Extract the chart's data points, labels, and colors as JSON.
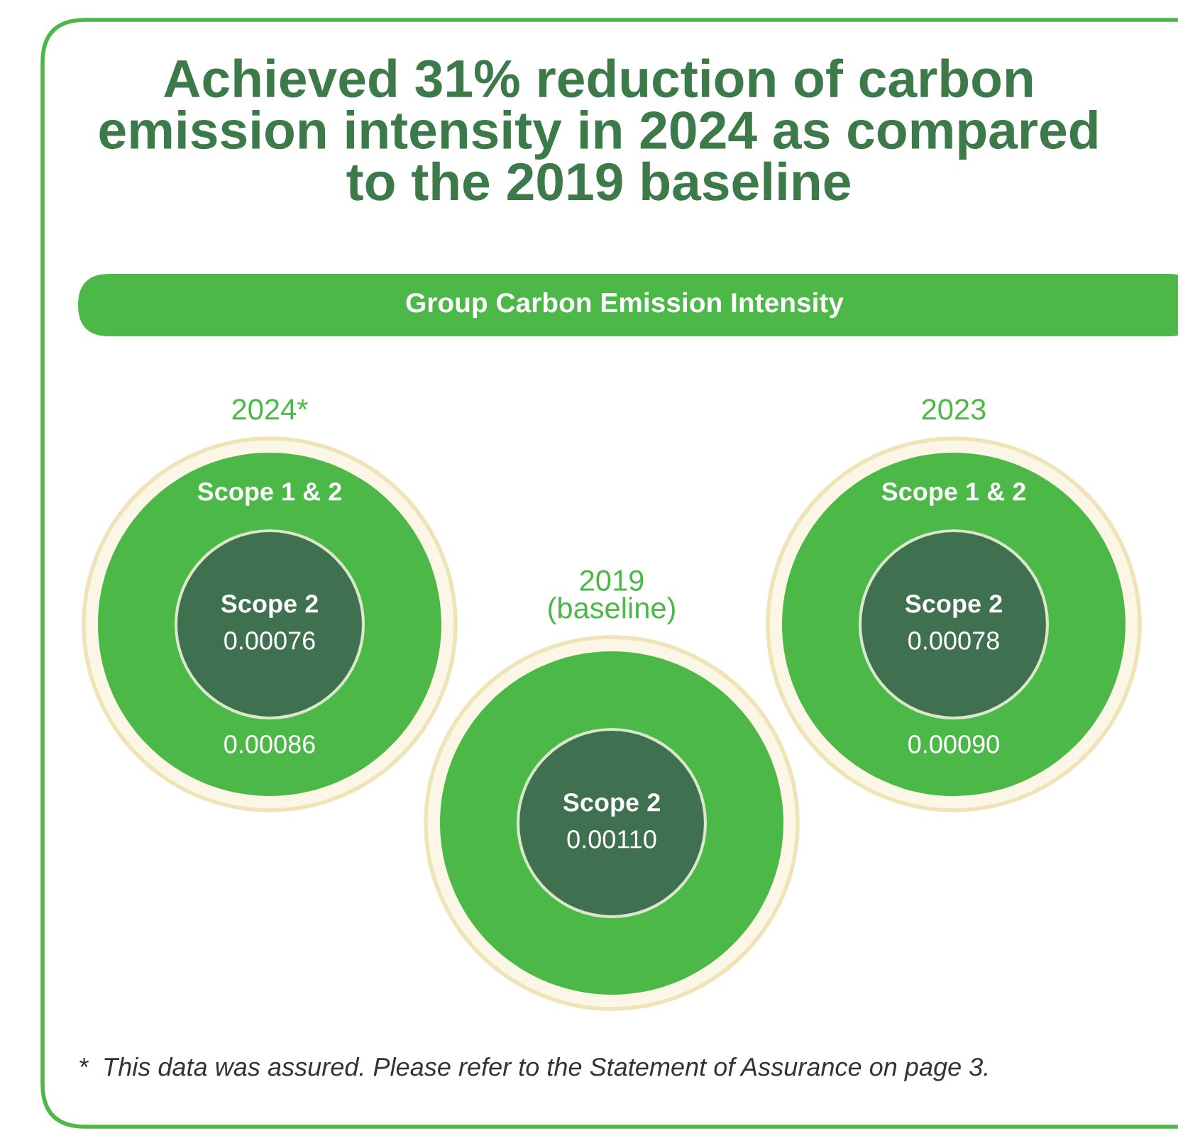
{
  "chart_data": {
    "type": "other",
    "title": "Achieved 31% reduction of carbon\nemission intensity in 2024 as compared\nto the 2019 baseline",
    "subtitle": "Group Carbon Emission Intensity",
    "categories": [
      "2024*",
      "2019\n(baseline)",
      "2023"
    ],
    "series": [
      {
        "name": "Scope 1 & 2",
        "color": "#4cb848",
        "values": [
          0.00086,
          null,
          0.0009
        ],
        "value_labels": [
          "0.00086",
          null,
          "0.00090"
        ]
      },
      {
        "name": "Scope 2",
        "color": "#3f7050",
        "values": [
          0.00076,
          0.0011,
          0.00078
        ],
        "value_labels": [
          "0.00076",
          "0.00110",
          "0.00078"
        ]
      }
    ],
    "annotations": [
      "*  This data was assured. Please refer to the Statement of Assurance on page 3."
    ]
  }
}
